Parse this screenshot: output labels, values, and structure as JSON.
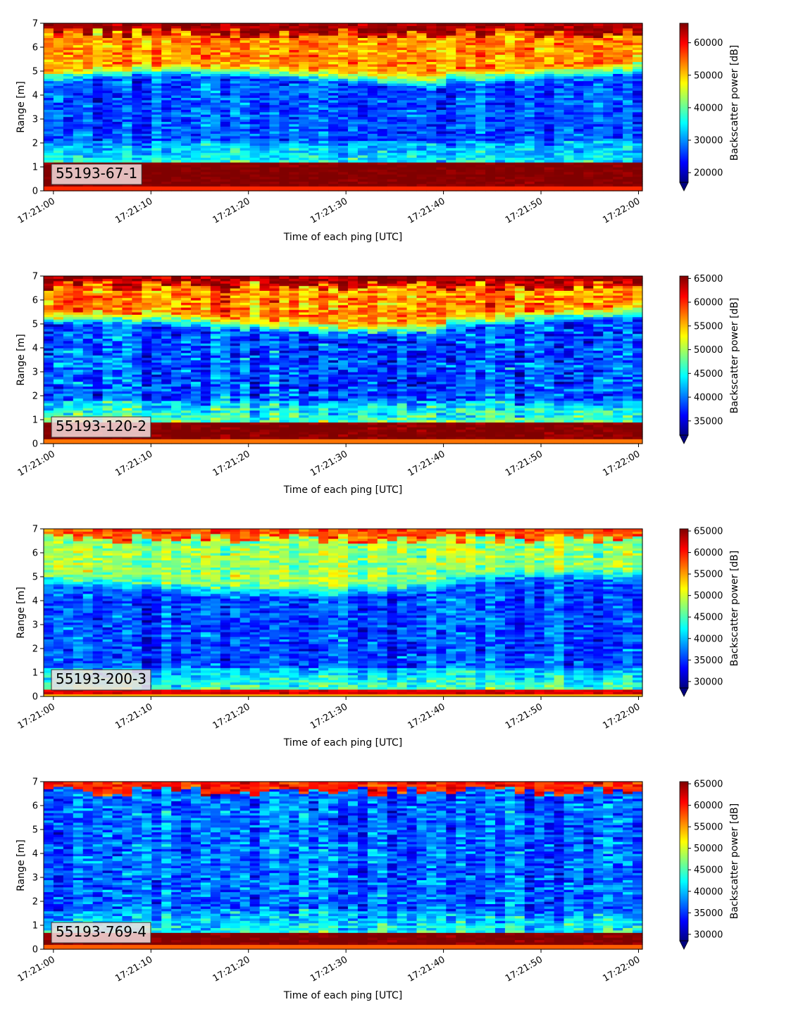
{
  "chart_data": [
    {
      "type": "heatmap",
      "label": "55193-67-1",
      "xlabel": "Time of each ping [UTC]",
      "ylabel": "Range [m]",
      "xticks": [
        "17:21:00",
        "17:21:10",
        "17:21:20",
        "17:21:30",
        "17:21:40",
        "17:21:50",
        "17:22:00"
      ],
      "xlim_seconds": [
        -1,
        60.4
      ],
      "ylim": [
        0,
        7
      ],
      "yticks": [
        0,
        1,
        2,
        3,
        4,
        5,
        6,
        7
      ],
      "colorbar": {
        "label": "Backscatter power [dB]",
        "min": 17000,
        "max": 66000,
        "ticks": [
          20000,
          30000,
          40000,
          50000,
          60000
        ],
        "colormap": "jet",
        "extend": "min"
      },
      "profile": {
        "bottom_band": [
          0.2,
          1.2
        ],
        "bottom_value": 66000,
        "mid_value": 27000,
        "upper_start": 4.5,
        "upper_value": 53000,
        "top_value": 64000,
        "noise": 4500
      }
    },
    {
      "type": "heatmap",
      "label": "55193-120-2",
      "xlabel": "Time of each ping [UTC]",
      "ylabel": "Range [m]",
      "xticks": [
        "17:21:00",
        "17:21:10",
        "17:21:20",
        "17:21:30",
        "17:21:40",
        "17:21:50",
        "17:22:00"
      ],
      "xlim_seconds": [
        -1,
        60.4
      ],
      "ylim": [
        0,
        7
      ],
      "yticks": [
        0,
        1,
        2,
        3,
        4,
        5,
        6,
        7
      ],
      "colorbar": {
        "label": "Backscatter power [dB]",
        "min": 32000,
        "max": 65500,
        "ticks": [
          35000,
          40000,
          45000,
          50000,
          55000,
          60000,
          65000
        ],
        "colormap": "jet",
        "extend": "min"
      },
      "profile": {
        "bottom_band": [
          0.2,
          0.9
        ],
        "bottom_value": 65500,
        "mid_value": 39000,
        "upper_start": 4.7,
        "upper_value": 57000,
        "top_value": 64000,
        "noise": 4000
      }
    },
    {
      "type": "heatmap",
      "label": "55193-200-3",
      "xlabel": "Time of each ping [UTC]",
      "ylabel": "Range [m]",
      "xticks": [
        "17:21:00",
        "17:21:10",
        "17:21:20",
        "17:21:30",
        "17:21:40",
        "17:21:50",
        "17:22:00"
      ],
      "xlim_seconds": [
        -1,
        60.4
      ],
      "ylim": [
        0,
        7
      ],
      "yticks": [
        0,
        1,
        2,
        3,
        4,
        5,
        6,
        7
      ],
      "colorbar": {
        "label": "Backscatter power [dB]",
        "min": 28500,
        "max": 65500,
        "ticks": [
          30000,
          35000,
          40000,
          45000,
          50000,
          55000,
          60000,
          65000
        ],
        "colormap": "jet",
        "extend": "min"
      },
      "profile": {
        "bottom_band": [
          0.05,
          0.35
        ],
        "bottom_value": 62000,
        "mid_value": 36000,
        "upper_start": 4.3,
        "upper_value": 48000,
        "top_value": 58000,
        "noise": 3500
      }
    },
    {
      "type": "heatmap",
      "label": "55193-769-4",
      "xlabel": "Time of each ping [UTC]",
      "ylabel": "Range [m]",
      "xticks": [
        "17:21:00",
        "17:21:10",
        "17:21:20",
        "17:21:30",
        "17:21:40",
        "17:21:50",
        "17:22:00"
      ],
      "xlim_seconds": [
        -1,
        60.4
      ],
      "ylim": [
        0,
        7
      ],
      "yticks": [
        0,
        1,
        2,
        3,
        4,
        5,
        6,
        7
      ],
      "colorbar": {
        "label": "Backscatter power [dB]",
        "min": 28500,
        "max": 65500,
        "ticks": [
          30000,
          35000,
          40000,
          45000,
          50000,
          55000,
          60000,
          65000
        ],
        "colormap": "jet",
        "extend": "min"
      },
      "profile": {
        "bottom_band": [
          0.2,
          0.65
        ],
        "bottom_value": 65500,
        "mid_value": 37000,
        "upper_start": 6.6,
        "upper_value": 36000,
        "top_value": 60000,
        "noise": 4000,
        "low_value": 44000
      }
    }
  ]
}
